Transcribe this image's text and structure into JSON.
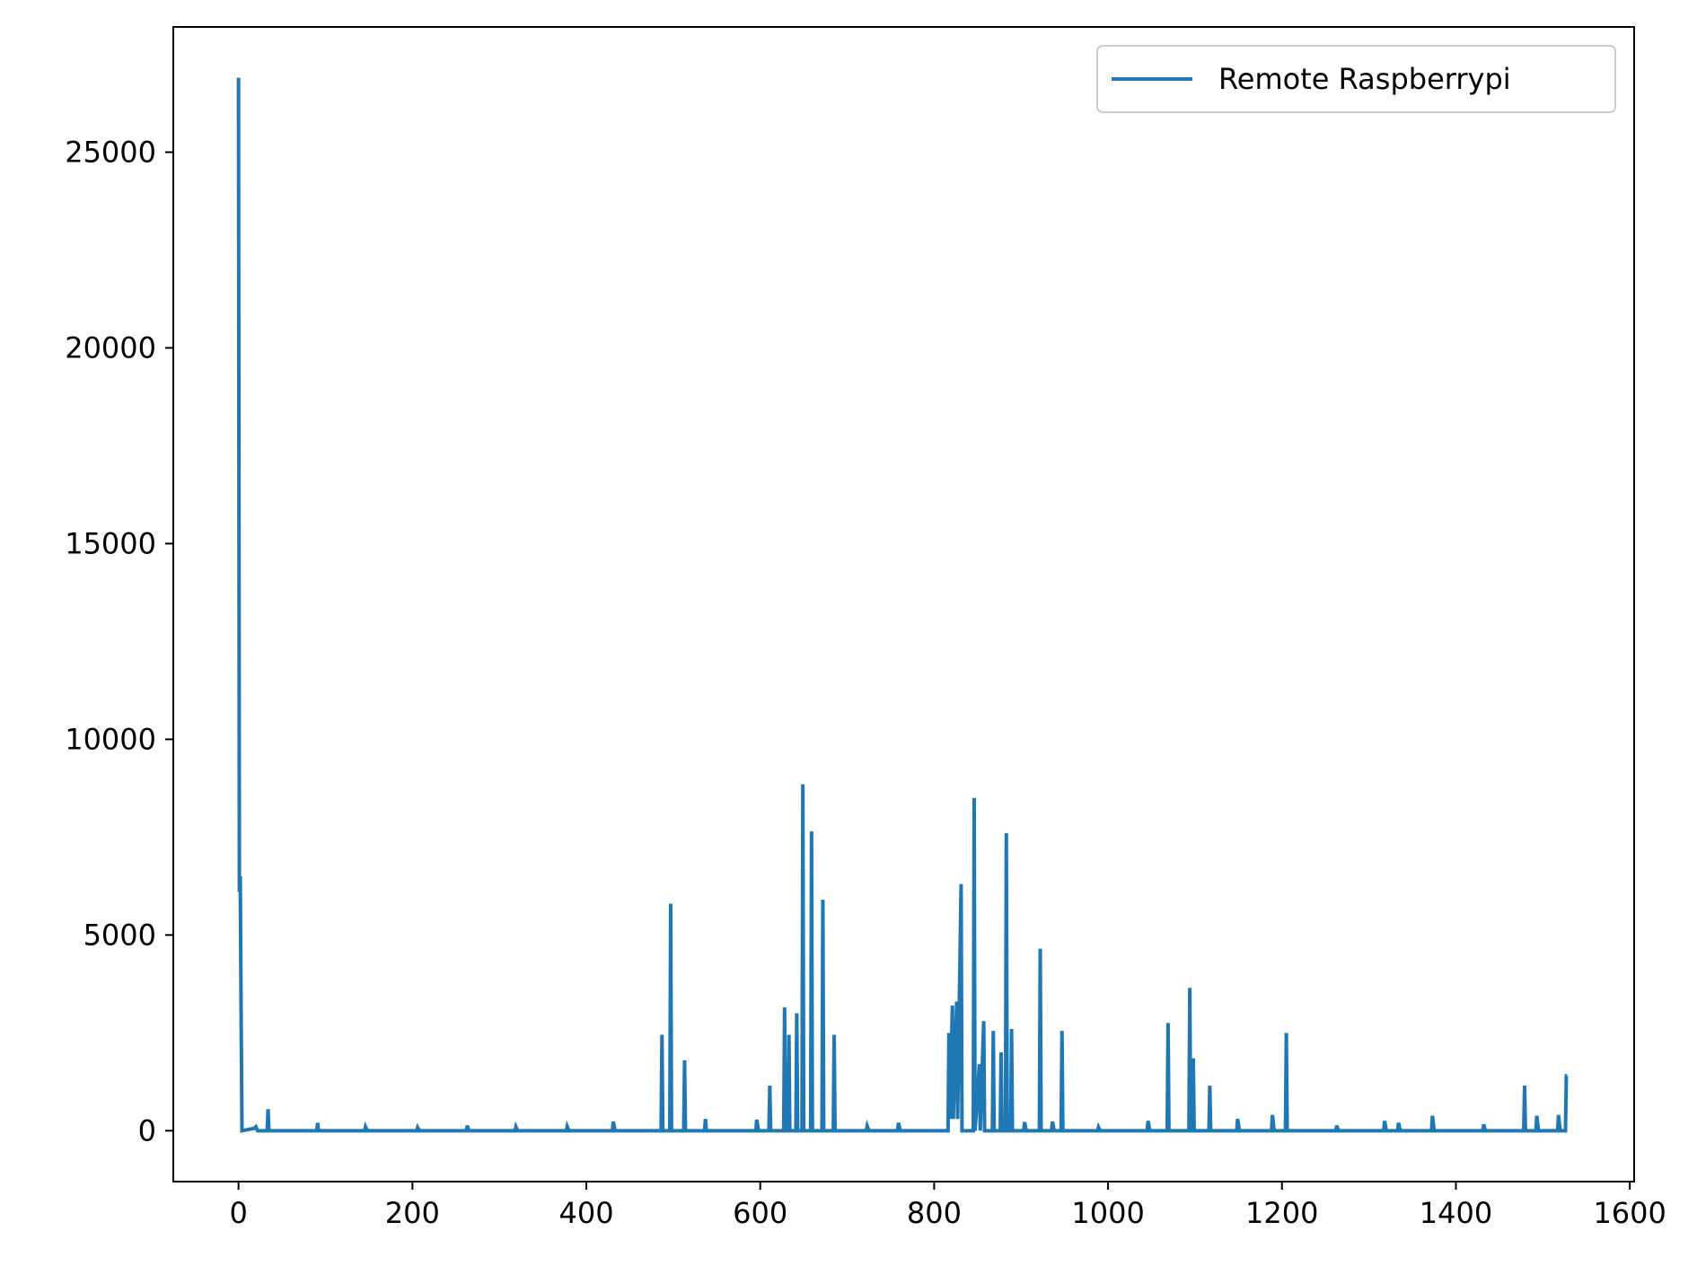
{
  "chart_data": {
    "type": "line",
    "title": "",
    "xlabel": "",
    "ylabel": "",
    "xlim": [
      -75,
      1605
    ],
    "ylim": [
      -1300,
      28200
    ],
    "xticks": [
      0,
      200,
      400,
      600,
      800,
      1000,
      1200,
      1400,
      1600
    ],
    "yticks": [
      0,
      5000,
      10000,
      15000,
      20000,
      25000
    ],
    "xtick_labels": [
      "0",
      "200",
      "400",
      "600",
      "800",
      "1000",
      "1200",
      "1400",
      "1600"
    ],
    "ytick_labels": [
      "0",
      "5000",
      "10000",
      "15000",
      "20000",
      "25000"
    ],
    "grid": false,
    "legend_position": "top-right",
    "series": [
      {
        "name": "Remote Raspberrypi",
        "color": "#1f77b4",
        "points": [
          [
            0,
            26900
          ],
          [
            1,
            6100
          ],
          [
            2,
            6500
          ],
          [
            3,
            3000
          ],
          [
            4,
            0
          ],
          [
            18,
            60
          ],
          [
            20,
            100
          ],
          [
            22,
            0
          ],
          [
            33,
            0
          ],
          [
            34,
            550
          ],
          [
            35,
            0
          ],
          [
            90,
            0
          ],
          [
            91,
            200
          ],
          [
            92,
            0
          ],
          [
            145,
            0
          ],
          [
            146,
            100
          ],
          [
            148,
            0
          ],
          [
            205,
            0
          ],
          [
            206,
            80
          ],
          [
            208,
            0
          ],
          [
            262,
            0
          ],
          [
            263,
            130
          ],
          [
            265,
            0
          ],
          [
            318,
            0
          ],
          [
            319,
            100
          ],
          [
            321,
            0
          ],
          [
            377,
            0
          ],
          [
            378,
            110
          ],
          [
            380,
            0
          ],
          [
            430,
            0
          ],
          [
            431,
            230
          ],
          [
            433,
            0
          ],
          [
            486,
            0
          ],
          [
            487,
            2450
          ],
          [
            488,
            0
          ],
          [
            496,
            0
          ],
          [
            497,
            5800
          ],
          [
            498,
            0
          ],
          [
            512,
            0
          ],
          [
            513,
            1800
          ],
          [
            514,
            0
          ],
          [
            536,
            0
          ],
          [
            537,
            300
          ],
          [
            538,
            0
          ],
          [
            595,
            0
          ],
          [
            596,
            280
          ],
          [
            598,
            0
          ],
          [
            610,
            0
          ],
          [
            611,
            1150
          ],
          [
            612,
            0
          ],
          [
            627,
            0
          ],
          [
            628,
            3150
          ],
          [
            629,
            0
          ],
          [
            632,
            0
          ],
          [
            633,
            2450
          ],
          [
            634,
            0
          ],
          [
            641,
            0
          ],
          [
            642,
            3000
          ],
          [
            643,
            0
          ],
          [
            648,
            0
          ],
          [
            649,
            8850
          ],
          [
            650,
            0
          ],
          [
            658,
            0
          ],
          [
            659,
            7650
          ],
          [
            660,
            0
          ],
          [
            671,
            0
          ],
          [
            672,
            5900
          ],
          [
            673,
            0
          ],
          [
            684,
            0
          ],
          [
            685,
            2450
          ],
          [
            686,
            0
          ],
          [
            722,
            0
          ],
          [
            723,
            120
          ],
          [
            725,
            0
          ],
          [
            758,
            0
          ],
          [
            759,
            200
          ],
          [
            761,
            0
          ],
          [
            816,
            0
          ],
          [
            817,
            2500
          ],
          [
            818,
            300
          ],
          [
            821,
            3200
          ],
          [
            822,
            300
          ],
          [
            826,
            3300
          ],
          [
            827,
            300
          ],
          [
            831,
            6300
          ],
          [
            832,
            0
          ],
          [
            845,
            0
          ],
          [
            846,
            8500
          ],
          [
            847,
            0
          ],
          [
            852,
            1700
          ],
          [
            853,
            0
          ],
          [
            857,
            2800
          ],
          [
            858,
            0
          ],
          [
            867,
            0
          ],
          [
            868,
            2550
          ],
          [
            869,
            0
          ],
          [
            876,
            0
          ],
          [
            877,
            2000
          ],
          [
            878,
            0
          ],
          [
            882,
            0
          ],
          [
            883,
            7600
          ],
          [
            884,
            0
          ],
          [
            888,
            0
          ],
          [
            889,
            2600
          ],
          [
            890,
            0
          ],
          [
            903,
            0
          ],
          [
            904,
            220
          ],
          [
            906,
            0
          ],
          [
            921,
            0
          ],
          [
            922,
            4650
          ],
          [
            923,
            0
          ],
          [
            935,
            0
          ],
          [
            936,
            230
          ],
          [
            938,
            0
          ],
          [
            946,
            0
          ],
          [
            947,
            2550
          ],
          [
            948,
            0
          ],
          [
            988,
            0
          ],
          [
            989,
            90
          ],
          [
            991,
            0
          ],
          [
            1045,
            0
          ],
          [
            1046,
            250
          ],
          [
            1048,
            0
          ],
          [
            1068,
            0
          ],
          [
            1069,
            2750
          ],
          [
            1070,
            0
          ],
          [
            1093,
            0
          ],
          [
            1094,
            3650
          ],
          [
            1095,
            0
          ],
          [
            1097,
            0
          ],
          [
            1098,
            1850
          ],
          [
            1099,
            0
          ],
          [
            1116,
            0
          ],
          [
            1117,
            1150
          ],
          [
            1118,
            0
          ],
          [
            1148,
            0
          ],
          [
            1149,
            300
          ],
          [
            1151,
            0
          ],
          [
            1188,
            0
          ],
          [
            1189,
            400
          ],
          [
            1191,
            0
          ],
          [
            1204,
            0
          ],
          [
            1205,
            2500
          ],
          [
            1206,
            0
          ],
          [
            1262,
            0
          ],
          [
            1263,
            130
          ],
          [
            1265,
            0
          ],
          [
            1317,
            0
          ],
          [
            1318,
            250
          ],
          [
            1320,
            0
          ],
          [
            1333,
            0
          ],
          [
            1334,
            200
          ],
          [
            1336,
            0
          ],
          [
            1372,
            0
          ],
          [
            1373,
            380
          ],
          [
            1375,
            0
          ],
          [
            1431,
            0
          ],
          [
            1432,
            160
          ],
          [
            1434,
            0
          ],
          [
            1478,
            0
          ],
          [
            1479,
            1150
          ],
          [
            1480,
            0
          ],
          [
            1492,
            0
          ],
          [
            1493,
            380
          ],
          [
            1495,
            0
          ],
          [
            1517,
            0
          ],
          [
            1518,
            400
          ],
          [
            1520,
            0
          ],
          [
            1526,
            0
          ],
          [
            1527,
            1400
          ],
          [
            1528,
            1400
          ]
        ]
      }
    ]
  }
}
